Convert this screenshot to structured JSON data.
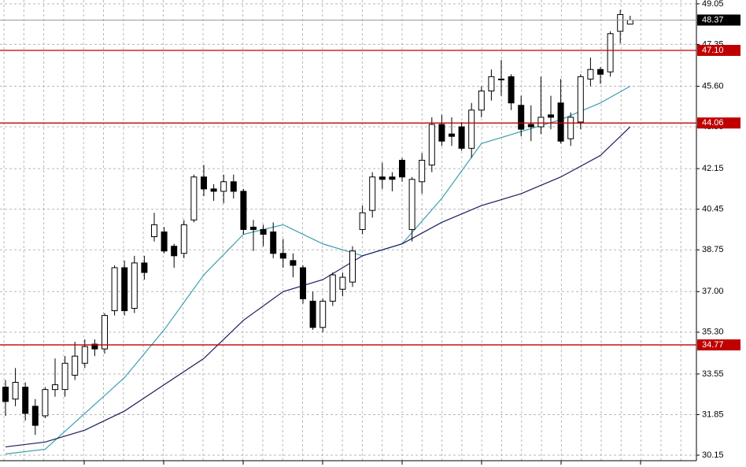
{
  "chart_data": {
    "type": "candlestick",
    "open": [
      33.0,
      32.5,
      33.0,
      32.2,
      31.8,
      32.9,
      32.9,
      33.5,
      34.0,
      34.8,
      34.6,
      36.2,
      38.0,
      36.3,
      38.2,
      39.3,
      39.5,
      38.9,
      38.6,
      40.0,
      41.8,
      41.3,
      41.2,
      41.6,
      41.2,
      39.7,
      39.6,
      39.5,
      38.6,
      38.3,
      38.0,
      36.6,
      35.5,
      36.6,
      37.1,
      37.4,
      39.6,
      40.4,
      41.8,
      41.8,
      42.5,
      39.6,
      41.6,
      42.3,
      44.0,
      43.6,
      43.9,
      43.0,
      44.6,
      45.4,
      45.9,
      46.0,
      44.8,
      44.0,
      43.9,
      44.4,
      44.9,
      43.4,
      44.1,
      45.9,
      46.3,
      46.2,
      47.9,
      48.2
    ],
    "high": [
      33.3,
      33.8,
      33.2,
      32.5,
      33.0,
      34.2,
      34.3,
      34.9,
      35.0,
      35.0,
      36.1,
      38.1,
      38.3,
      38.5,
      38.5,
      40.3,
      39.7,
      39.0,
      40.0,
      41.9,
      42.3,
      41.5,
      41.9,
      41.9,
      41.3,
      40.0,
      39.8,
      39.9,
      39.2,
      38.6,
      38.1,
      37.0,
      36.7,
      37.8,
      37.8,
      38.9,
      40.6,
      42.0,
      42.4,
      42.0,
      42.6,
      41.8,
      42.8,
      44.3,
      44.4,
      44.3,
      44.1,
      44.9,
      45.6,
      46.3,
      46.7,
      46.1,
      45.2,
      44.8,
      46.0,
      45.2,
      45.9,
      44.5,
      46.1,
      46.8,
      46.4,
      47.9,
      48.8,
      48.55
    ],
    "low": [
      31.8,
      32.2,
      31.6,
      31.0,
      31.7,
      32.6,
      32.6,
      33.3,
      33.8,
      34.3,
      34.4,
      36.0,
      36.0,
      36.1,
      37.5,
      39.1,
      38.6,
      38.0,
      38.4,
      39.9,
      41.0,
      40.8,
      40.7,
      40.9,
      39.4,
      38.7,
      38.9,
      38.4,
      38.0,
      37.6,
      36.5,
      35.4,
      35.3,
      36.4,
      36.8,
      37.2,
      39.4,
      40.1,
      41.3,
      41.2,
      41.6,
      39.1,
      41.1,
      42.0,
      43.1,
      43.1,
      42.9,
      42.6,
      44.3,
      45.0,
      45.2,
      44.6,
      43.5,
      43.3,
      43.6,
      43.8,
      43.2,
      43.1,
      43.8,
      45.6,
      45.7,
      46.0,
      47.4,
      48.19
    ],
    "close": [
      32.4,
      33.2,
      31.9,
      31.4,
      32.9,
      33.1,
      34.0,
      34.3,
      34.7,
      34.6,
      36.0,
      38.0,
      36.2,
      38.2,
      37.8,
      39.8,
      38.7,
      38.5,
      39.8,
      41.8,
      41.3,
      41.2,
      41.6,
      41.2,
      39.6,
      39.6,
      39.4,
      38.6,
      38.4,
      38.1,
      36.7,
      35.5,
      36.6,
      37.7,
      37.6,
      38.7,
      40.3,
      41.8,
      41.7,
      41.7,
      41.8,
      41.7,
      42.5,
      44.0,
      43.3,
      43.5,
      43.0,
      44.6,
      45.4,
      46.0,
      45.9,
      44.9,
      43.8,
      43.9,
      44.3,
      44.3,
      43.3,
      44.3,
      46.0,
      46.3,
      46.1,
      47.8,
      48.6,
      48.37
    ],
    "series": [
      {
        "color": "#3a9fb0",
        "x": [
          0,
          4,
          8,
          12,
          16,
          20,
          24,
          28,
          32,
          36,
          40,
          44,
          48,
          52,
          56,
          60,
          63
        ],
        "values": [
          30.2,
          30.4,
          31.9,
          33.4,
          35.4,
          37.7,
          39.4,
          39.8,
          39.0,
          38.5,
          39.0,
          40.9,
          43.2,
          43.7,
          44.2,
          44.9,
          45.6
        ]
      },
      {
        "color": "#1c1c5c",
        "x": [
          0,
          4,
          8,
          12,
          16,
          20,
          24,
          28,
          32,
          36,
          40,
          44,
          48,
          52,
          56,
          60,
          63
        ],
        "values": [
          30.5,
          30.7,
          31.2,
          32.0,
          33.1,
          34.2,
          35.8,
          37.0,
          37.5,
          38.5,
          39.0,
          39.9,
          40.6,
          41.1,
          41.8,
          42.7,
          43.9
        ]
      }
    ],
    "levels": [
      {
        "value": 47.1,
        "label": "47.10"
      },
      {
        "value": 44.06,
        "label": "44.06"
      },
      {
        "value": 34.77,
        "label": "34.77"
      }
    ],
    "level_color": "#c00000",
    "ylim": [
      29.92,
      49.21
    ],
    "yticks": [
      49.05,
      47.35,
      {
        "value": 45.6,
        "label": "45.60"
      },
      {
        "value": 43.9,
        "label": "43.90"
      },
      42.15,
      40.45,
      38.75,
      {
        "value": 37.0,
        "label": "37.00"
      },
      {
        "value": 35.3,
        "label": "35.30"
      },
      33.55,
      31.85,
      30.15
    ],
    "grid": true
  }
}
